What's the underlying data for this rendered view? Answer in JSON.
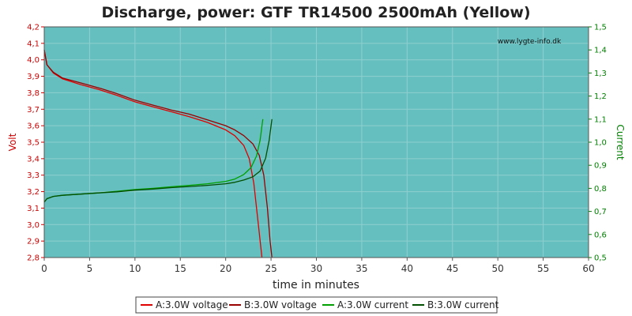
{
  "chart_data": {
    "type": "line",
    "title": "Discharge, power: GTF TR14500 2500mAh (Yellow)",
    "watermark": "www.lygte-info.dk",
    "xlabel": "time in minutes",
    "ylabel_left": "Volt",
    "ylabel_right": "Current",
    "xlim": [
      0,
      60
    ],
    "ylim_left": [
      2.8,
      4.2
    ],
    "ylim_right": [
      0.5,
      1.5
    ],
    "x_ticks": [
      "0",
      "5",
      "10",
      "15",
      "20",
      "25",
      "30",
      "35",
      "40",
      "45",
      "50",
      "55",
      "60"
    ],
    "y_left_ticks": [
      "2,8",
      "2,9",
      "3,0",
      "3,1",
      "3,2",
      "3,3",
      "3,4",
      "3,5",
      "3,6",
      "3,7",
      "3,8",
      "3,9",
      "4,0",
      "4,1",
      "4,2"
    ],
    "y_right_ticks": [
      "0,5",
      "0,6",
      "0,7",
      "0,8",
      "0,9",
      "1,0",
      "1,1",
      "1,2",
      "1,3",
      "1,4",
      "1,5"
    ],
    "grid": true,
    "legend_position": "bottom",
    "colors": {
      "background": "#66bfbf",
      "grid": "#8fcfcf",
      "voltage_a": "#e00000",
      "voltage_b": "#990000",
      "current_a": "#00a000",
      "current_b": "#005000",
      "left_axis": "#cc0000",
      "right_axis": "#008000"
    },
    "series": [
      {
        "name": "A:3.0W voltage",
        "axis": "left",
        "color": "#e00000",
        "points": [
          [
            0,
            4.06
          ],
          [
            0.3,
            3.97
          ],
          [
            1,
            3.92
          ],
          [
            2,
            3.885
          ],
          [
            4,
            3.85
          ],
          [
            6,
            3.82
          ],
          [
            8,
            3.785
          ],
          [
            10,
            3.745
          ],
          [
            12,
            3.715
          ],
          [
            14,
            3.685
          ],
          [
            16,
            3.655
          ],
          [
            18,
            3.62
          ],
          [
            20,
            3.575
          ],
          [
            21,
            3.54
          ],
          [
            22,
            3.48
          ],
          [
            22.6,
            3.4
          ],
          [
            23.1,
            3.25
          ],
          [
            23.5,
            3.05
          ],
          [
            23.8,
            2.9
          ],
          [
            24.0,
            2.8
          ]
        ]
      },
      {
        "name": "B:3.0W voltage",
        "axis": "left",
        "color": "#990000",
        "points": [
          [
            0,
            4.06
          ],
          [
            0.3,
            3.97
          ],
          [
            1,
            3.925
          ],
          [
            2,
            3.89
          ],
          [
            4,
            3.86
          ],
          [
            6,
            3.83
          ],
          [
            8,
            3.795
          ],
          [
            10,
            3.755
          ],
          [
            12,
            3.725
          ],
          [
            14,
            3.695
          ],
          [
            16,
            3.67
          ],
          [
            18,
            3.635
          ],
          [
            20,
            3.6
          ],
          [
            21,
            3.575
          ],
          [
            22,
            3.54
          ],
          [
            23,
            3.49
          ],
          [
            23.7,
            3.42
          ],
          [
            24.2,
            3.3
          ],
          [
            24.6,
            3.1
          ],
          [
            24.9,
            2.9
          ],
          [
            25.1,
            2.8
          ]
        ]
      },
      {
        "name": "A:3.0W current",
        "axis": "right",
        "color": "#00a000",
        "points": [
          [
            0,
            0.74
          ],
          [
            0.3,
            0.755
          ],
          [
            1,
            0.765
          ],
          [
            2,
            0.77
          ],
          [
            4,
            0.775
          ],
          [
            6,
            0.78
          ],
          [
            8,
            0.787
          ],
          [
            10,
            0.795
          ],
          [
            12,
            0.8
          ],
          [
            14,
            0.807
          ],
          [
            16,
            0.813
          ],
          [
            18,
            0.82
          ],
          [
            20,
            0.83
          ],
          [
            21,
            0.84
          ],
          [
            22,
            0.86
          ],
          [
            22.8,
            0.89
          ],
          [
            23.4,
            0.94
          ],
          [
            23.8,
            1.01
          ],
          [
            24.1,
            1.1
          ]
        ]
      },
      {
        "name": "B:3.0W current",
        "axis": "right",
        "color": "#005000",
        "points": [
          [
            0,
            0.74
          ],
          [
            0.3,
            0.755
          ],
          [
            1,
            0.765
          ],
          [
            2,
            0.77
          ],
          [
            4,
            0.775
          ],
          [
            6,
            0.78
          ],
          [
            8,
            0.785
          ],
          [
            10,
            0.792
          ],
          [
            12,
            0.797
          ],
          [
            14,
            0.803
          ],
          [
            16,
            0.808
          ],
          [
            18,
            0.813
          ],
          [
            20,
            0.82
          ],
          [
            21,
            0.826
          ],
          [
            22,
            0.836
          ],
          [
            23,
            0.85
          ],
          [
            23.8,
            0.875
          ],
          [
            24.4,
            0.93
          ],
          [
            24.8,
            1.01
          ],
          [
            25.1,
            1.1
          ]
        ]
      }
    ],
    "legend": [
      {
        "label": "A:3.0W voltage",
        "color": "#e00000"
      },
      {
        "label": "B:3.0W voltage",
        "color": "#990000"
      },
      {
        "label": "A:3.0W current",
        "color": "#00a000"
      },
      {
        "label": "B:3.0W current",
        "color": "#005000"
      }
    ]
  }
}
